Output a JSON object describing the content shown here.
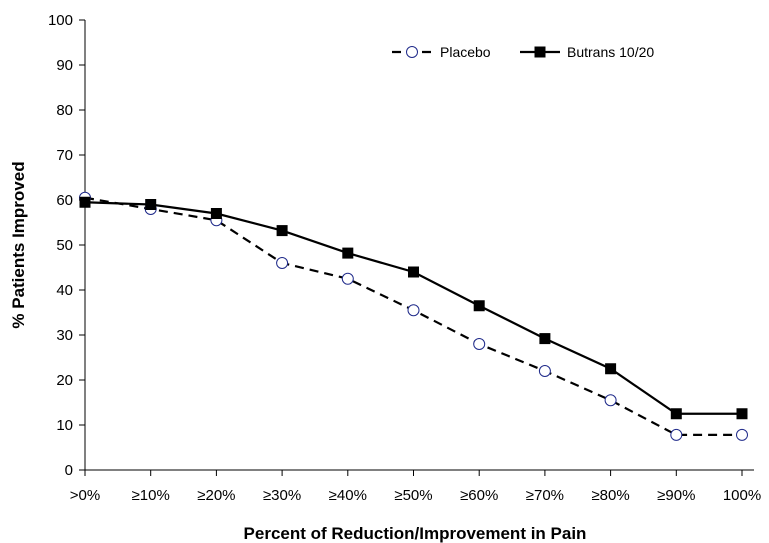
{
  "chart_data": {
    "type": "line",
    "title": "",
    "xlabel": "Percent of Reduction/Improvement in Pain",
    "ylabel": "% Patients Improved",
    "categories": [
      ">0%",
      "≥10%",
      "≥20%",
      "≥30%",
      "≥40%",
      "≥50%",
      "≥60%",
      "≥70%",
      "≥80%",
      "≥90%",
      "100%"
    ],
    "ylim": [
      0,
      100
    ],
    "yticks": [
      0,
      10,
      20,
      30,
      40,
      50,
      60,
      70,
      80,
      90,
      100
    ],
    "grid": false,
    "legend_position": "top-right",
    "series": [
      {
        "name": "Placebo",
        "line_style": "dashed",
        "marker": "open-circle",
        "marker_color": "#1f2a8a",
        "line_color": "#000000",
        "values": [
          60.5,
          58,
          55.5,
          46,
          42.5,
          35.5,
          28,
          22,
          15.5,
          7.8,
          7.8
        ]
      },
      {
        "name": "Butrans 10/20",
        "line_style": "solid",
        "marker": "filled-square",
        "marker_color": "#000000",
        "line_color": "#000000",
        "values": [
          59.5,
          59,
          57,
          53.2,
          48.2,
          44,
          36.5,
          29.2,
          22.5,
          12.5,
          12.5
        ]
      }
    ]
  }
}
